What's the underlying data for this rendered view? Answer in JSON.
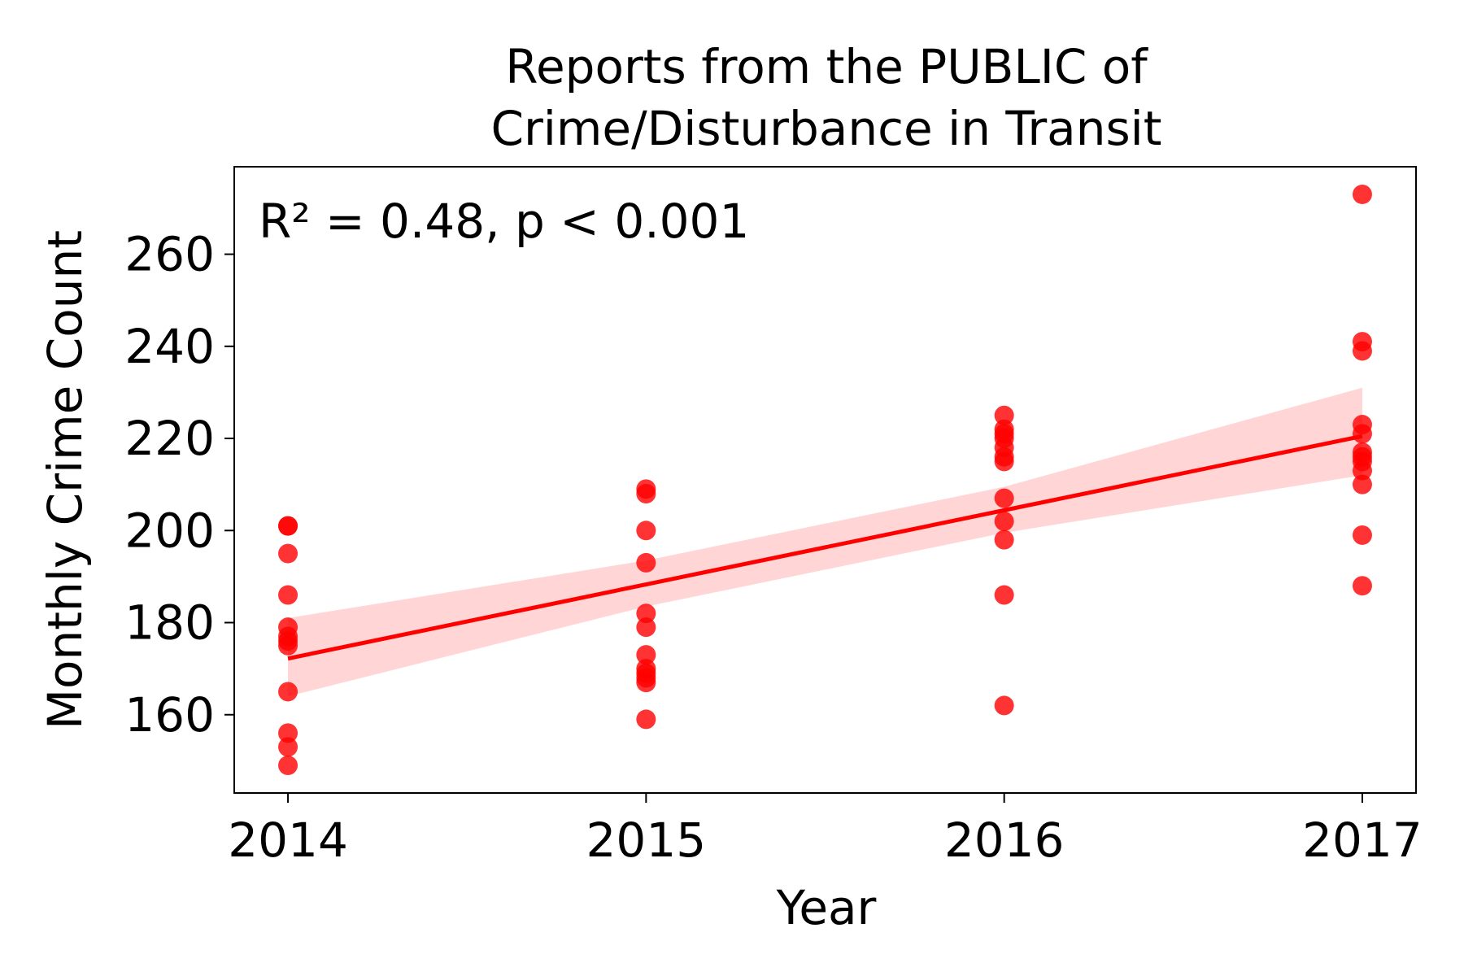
{
  "chart_data": {
    "type": "scatter",
    "title_line1": "Reports from the PUBLIC of",
    "title_line2": "Crime/Disturbance in Transit",
    "xlabel": "Year",
    "ylabel": "Monthly Crime Count",
    "annotation": "R² = 0.48, p < 0.001",
    "x_ticks": [
      "2014",
      "2015",
      "2016",
      "2017"
    ],
    "y_ticks": [
      160,
      180,
      200,
      220,
      240,
      260
    ],
    "xlim": [
      2013.85,
      2017.15
    ],
    "ylim": [
      143,
      279
    ],
    "grid": false,
    "point_color": "#ff0000",
    "band_color": "#ffd0d0",
    "points": [
      {
        "x": 2014,
        "y": 201
      },
      {
        "x": 2014,
        "y": 201
      },
      {
        "x": 2014,
        "y": 195
      },
      {
        "x": 2014,
        "y": 186
      },
      {
        "x": 2014,
        "y": 179
      },
      {
        "x": 2014,
        "y": 177
      },
      {
        "x": 2014,
        "y": 175
      },
      {
        "x": 2014,
        "y": 165
      },
      {
        "x": 2014,
        "y": 156
      },
      {
        "x": 2014,
        "y": 153
      },
      {
        "x": 2014,
        "y": 149
      },
      {
        "x": 2014,
        "y": 176
      },
      {
        "x": 2015,
        "y": 209
      },
      {
        "x": 2015,
        "y": 208
      },
      {
        "x": 2015,
        "y": 200
      },
      {
        "x": 2015,
        "y": 193
      },
      {
        "x": 2015,
        "y": 182
      },
      {
        "x": 2015,
        "y": 179
      },
      {
        "x": 2015,
        "y": 173
      },
      {
        "x": 2015,
        "y": 170
      },
      {
        "x": 2015,
        "y": 169
      },
      {
        "x": 2015,
        "y": 168
      },
      {
        "x": 2015,
        "y": 167
      },
      {
        "x": 2015,
        "y": 159
      },
      {
        "x": 2016,
        "y": 225
      },
      {
        "x": 2016,
        "y": 222
      },
      {
        "x": 2016,
        "y": 220
      },
      {
        "x": 2016,
        "y": 218
      },
      {
        "x": 2016,
        "y": 216
      },
      {
        "x": 2016,
        "y": 215
      },
      {
        "x": 2016,
        "y": 207
      },
      {
        "x": 2016,
        "y": 202
      },
      {
        "x": 2016,
        "y": 198
      },
      {
        "x": 2016,
        "y": 186
      },
      {
        "x": 2016,
        "y": 162
      },
      {
        "x": 2016,
        "y": 221
      },
      {
        "x": 2017,
        "y": 273
      },
      {
        "x": 2017,
        "y": 241
      },
      {
        "x": 2017,
        "y": 239
      },
      {
        "x": 2017,
        "y": 223
      },
      {
        "x": 2017,
        "y": 221
      },
      {
        "x": 2017,
        "y": 217
      },
      {
        "x": 2017,
        "y": 215
      },
      {
        "x": 2017,
        "y": 213
      },
      {
        "x": 2017,
        "y": 210
      },
      {
        "x": 2017,
        "y": 199
      },
      {
        "x": 2017,
        "y": 188
      },
      {
        "x": 2017,
        "y": 216
      }
    ],
    "regression": {
      "x": [
        2014,
        2015,
        2016,
        2017
      ],
      "y": [
        172.2,
        188.3,
        204.4,
        220.5
      ],
      "ci_lower": [
        164.0,
        183.5,
        199.5,
        212.0
      ],
      "ci_upper": [
        181.0,
        193.5,
        209.5,
        231.0
      ]
    }
  }
}
